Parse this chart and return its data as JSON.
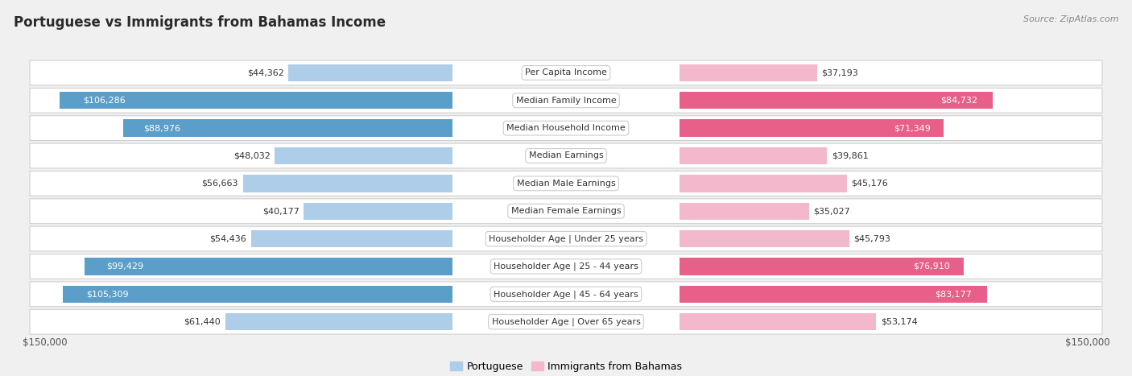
{
  "title": "Portuguese vs Immigrants from Bahamas Income",
  "source": "Source: ZipAtlas.com",
  "categories": [
    "Per Capita Income",
    "Median Family Income",
    "Median Household Income",
    "Median Earnings",
    "Median Male Earnings",
    "Median Female Earnings",
    "Householder Age | Under 25 years",
    "Householder Age | 25 - 44 years",
    "Householder Age | 45 - 64 years",
    "Householder Age | Over 65 years"
  ],
  "portuguese_values": [
    44362,
    106286,
    88976,
    48032,
    56663,
    40177,
    54436,
    99429,
    105309,
    61440
  ],
  "bahamas_values": [
    37193,
    84732,
    71349,
    39861,
    45176,
    35027,
    45793,
    76910,
    83177,
    53174
  ],
  "portuguese_labels": [
    "$44,362",
    "$106,286",
    "$88,976",
    "$48,032",
    "$56,663",
    "$40,177",
    "$54,436",
    "$99,429",
    "$105,309",
    "$61,440"
  ],
  "bahamas_labels": [
    "$37,193",
    "$84,732",
    "$71,349",
    "$39,861",
    "$45,176",
    "$35,027",
    "$45,793",
    "$76,910",
    "$83,177",
    "$53,174"
  ],
  "portuguese_light_color": "#aecde8",
  "portuguese_dark_color": "#5b9ec9",
  "bahamas_light_color": "#f4b8cd",
  "bahamas_dark_color": "#e8608a",
  "max_value": 150000,
  "bg_color": "#f0f0f0",
  "row_bg_color": "#ffffff",
  "center_label_bg": "#ffffff",
  "center_label_border": "#cccccc",
  "dark_threshold": 65000,
  "legend_portuguese": "Portuguese",
  "legend_bahamas": "Immigrants from Bahamas",
  "xlabel_left": "$150,000",
  "xlabel_right": "$150,000",
  "title_fontsize": 12,
  "label_fontsize": 8,
  "category_fontsize": 8,
  "source_fontsize": 8
}
